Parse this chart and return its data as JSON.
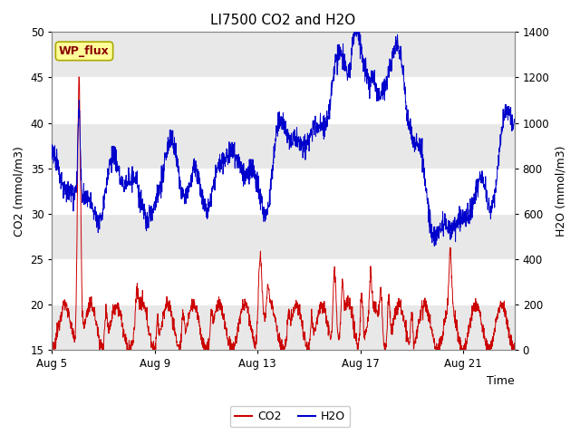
{
  "title": "LI7500 CO2 and H2O",
  "xlabel": "Time",
  "ylabel_left": "CO2 (mmol/m3)",
  "ylabel_right": "H2O (mmol/m3)",
  "ylim_left": [
    15,
    50
  ],
  "ylim_right": [
    0,
    1400
  ],
  "yticks_left": [
    15,
    20,
    25,
    30,
    35,
    40,
    45,
    50
  ],
  "yticks_right": [
    0,
    200,
    400,
    600,
    800,
    1000,
    1200,
    1400
  ],
  "xtick_positions": [
    0,
    4,
    8,
    12,
    16
  ],
  "xtick_labels": [
    "Aug 5",
    "Aug 9",
    "Aug 13",
    "Aug 17",
    "Aug 21"
  ],
  "co2_color": "#cc0000",
  "h2o_color": "#0000cc",
  "bg_color": "#ffffff",
  "band_color_light": "#f0f0f0",
  "band_color_dark": "#e0e0e0",
  "annotation_text": "WP_flux",
  "title_fontsize": 11,
  "axis_fontsize": 9,
  "tick_fontsize": 8.5,
  "legend_fontsize": 9
}
